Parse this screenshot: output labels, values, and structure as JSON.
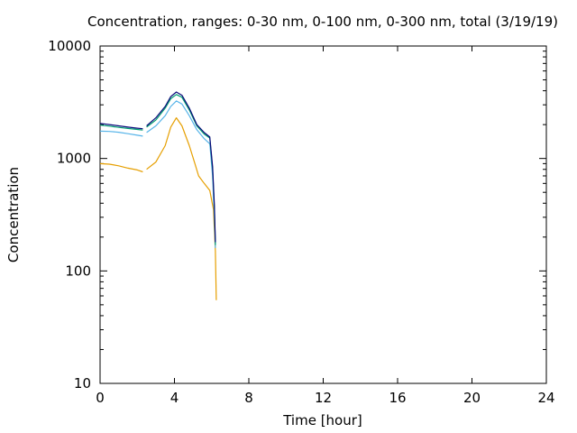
{
  "chart_data": {
    "type": "line",
    "title": "Concentration, ranges: 0-30 nm, 0-100 nm, 0-300 nm, total (3/19/19)",
    "xlabel": "Time [hour]",
    "ylabel": "Concentration",
    "xlim": [
      0,
      24
    ],
    "ylim": [
      10,
      10000
    ],
    "y_scale": "log",
    "grid": false,
    "legend": "none",
    "x_ticks": [
      "0",
      "4",
      "8",
      "12",
      "16",
      "20",
      "24"
    ],
    "y_ticks": [
      "10",
      "100",
      "1000",
      "10000"
    ],
    "series": [
      {
        "color": "#e69f00",
        "points": [
          [
            0,
            900
          ],
          [
            0.5,
            890
          ],
          [
            1,
            860
          ],
          [
            1.5,
            820
          ],
          [
            2,
            790
          ],
          [
            2.3,
            760
          ],
          null,
          [
            2.5,
            800
          ],
          [
            3,
            930
          ],
          [
            3.5,
            1300
          ],
          [
            3.8,
            1900
          ],
          [
            4.1,
            2300
          ],
          [
            4.4,
            1950
          ],
          [
            4.8,
            1300
          ],
          [
            5.1,
            900
          ],
          [
            5.3,
            700
          ],
          [
            5.6,
            600
          ],
          [
            5.9,
            520
          ],
          [
            6.1,
            350
          ],
          [
            6.2,
            150
          ],
          [
            6.25,
            55
          ]
        ]
      },
      {
        "color": "#56b4e9",
        "points": [
          [
            0,
            1750
          ],
          [
            0.5,
            1740
          ],
          [
            1,
            1710
          ],
          [
            1.5,
            1660
          ],
          [
            2,
            1610
          ],
          [
            2.3,
            1580
          ],
          null,
          [
            2.5,
            1700
          ],
          [
            3,
            1950
          ],
          [
            3.5,
            2400
          ],
          [
            3.8,
            2900
          ],
          [
            4.1,
            3250
          ],
          [
            4.4,
            3050
          ],
          [
            4.8,
            2400
          ],
          [
            5.2,
            1800
          ],
          [
            5.6,
            1500
          ],
          [
            5.9,
            1350
          ],
          [
            6.05,
            700
          ],
          [
            6.15,
            300
          ],
          [
            6.2,
            160
          ]
        ]
      },
      {
        "color": "#009e73",
        "points": [
          [
            0,
            1980
          ],
          [
            0.5,
            1940
          ],
          [
            1,
            1890
          ],
          [
            1.5,
            1850
          ],
          [
            2,
            1810
          ],
          [
            2.3,
            1790
          ],
          null,
          [
            2.5,
            1900
          ],
          [
            3,
            2200
          ],
          [
            3.5,
            2800
          ],
          [
            3.8,
            3400
          ],
          [
            4.1,
            3700
          ],
          [
            4.4,
            3500
          ],
          [
            4.8,
            2700
          ],
          [
            5.2,
            1950
          ],
          [
            5.6,
            1650
          ],
          [
            5.9,
            1520
          ],
          [
            6.05,
            800
          ],
          [
            6.15,
            350
          ],
          [
            6.2,
            170
          ]
        ]
      },
      {
        "color": "#0a0a7a",
        "points": [
          [
            0,
            2050
          ],
          [
            0.5,
            2000
          ],
          [
            1,
            1950
          ],
          [
            1.5,
            1900
          ],
          [
            2,
            1860
          ],
          [
            2.3,
            1840
          ],
          null,
          [
            2.5,
            1950
          ],
          [
            3,
            2300
          ],
          [
            3.5,
            2900
          ],
          [
            3.8,
            3550
          ],
          [
            4.1,
            3900
          ],
          [
            4.4,
            3650
          ],
          [
            4.8,
            2800
          ],
          [
            5.2,
            2000
          ],
          [
            5.6,
            1700
          ],
          [
            5.9,
            1550
          ],
          [
            6.05,
            850
          ],
          [
            6.15,
            380
          ],
          [
            6.2,
            180
          ]
        ]
      }
    ]
  }
}
